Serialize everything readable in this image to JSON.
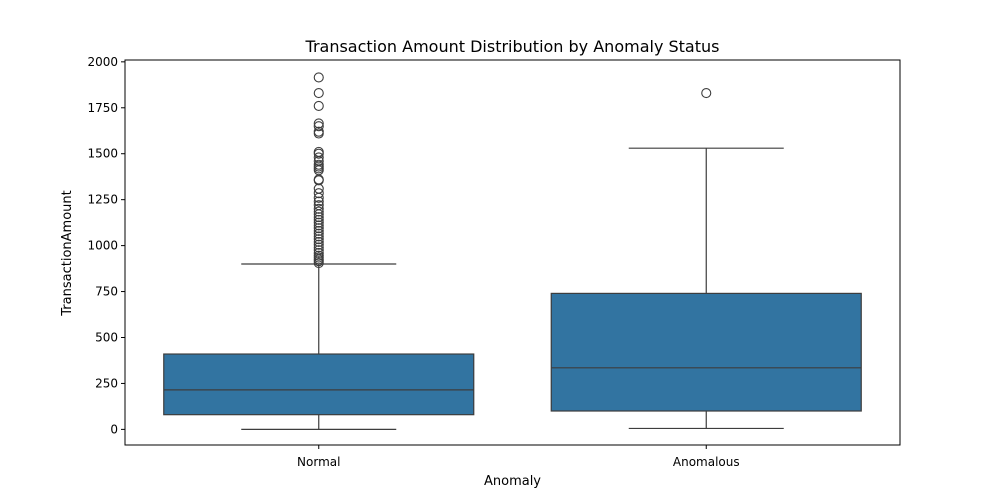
{
  "chart_data": {
    "type": "boxplot",
    "title": "Transaction Amount Distribution by Anomaly Status",
    "xlabel": "Anomaly",
    "ylabel": "TransactionAmount",
    "categories": [
      "Normal",
      "Anomalous"
    ],
    "ylim": [
      -85,
      2010
    ],
    "yticks": [
      0,
      250,
      500,
      750,
      1000,
      1250,
      1500,
      1750,
      2000
    ],
    "grid": false,
    "box_color": "#3274a1",
    "line_color": "#3d3d3d",
    "boxes": [
      {
        "category": "Normal",
        "whisker_low": 0,
        "q1": 80,
        "median": 215,
        "q3": 410,
        "whisker_high": 900,
        "outliers": [
          905,
          915,
          925,
          935,
          945,
          960,
          975,
          990,
          1005,
          1020,
          1035,
          1050,
          1065,
          1080,
          1095,
          1110,
          1125,
          1140,
          1155,
          1170,
          1185,
          1200,
          1220,
          1240,
          1260,
          1285,
          1310,
          1355,
          1360,
          1410,
          1420,
          1430,
          1440,
          1460,
          1480,
          1500,
          1510,
          1610,
          1620,
          1650,
          1665,
          1760,
          1830,
          1915
        ]
      },
      {
        "category": "Anomalous",
        "whisker_low": 5,
        "q1": 100,
        "median": 335,
        "q3": 740,
        "whisker_high": 1530,
        "outliers": [
          1830
        ]
      }
    ]
  }
}
